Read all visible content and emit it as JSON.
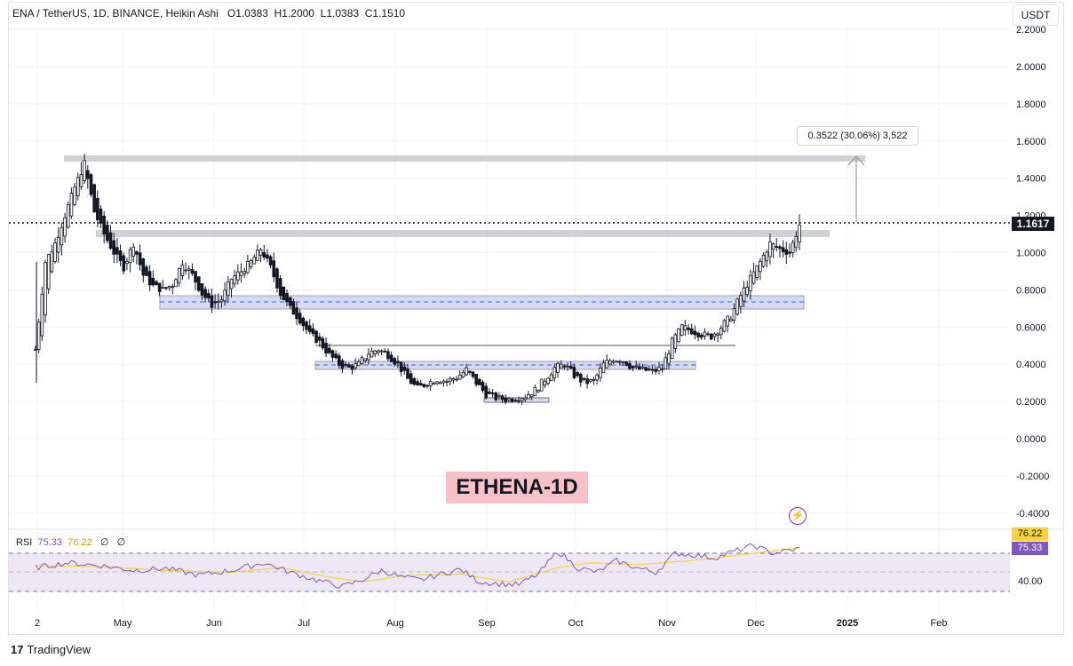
{
  "header": {
    "symbol": "ENA / TetherUS, 1D, BINANCE, Heikin Ashi",
    "open_label": "O",
    "open": "1.0383",
    "high_label": "H",
    "high": "1.2000",
    "low_label": "L",
    "low": "1.0383",
    "close_label": "C",
    "close": "1.1510"
  },
  "currency_button": "USDT",
  "last_price": "1.1617",
  "measure_label": "0.3522 (30.06%) 3,522",
  "annotation_title": "ETHENA-1D",
  "rsi_legend": {
    "name": "RSI",
    "rsi": "75.33",
    "ma": "76.22",
    "extra1": "∅",
    "extra2": "∅"
  },
  "rsi_tags": {
    "ma": "76.22",
    "rsi": "75.33"
  },
  "rsi_axis_label": "40.00",
  "colors": {
    "rsi_line": "#7e57c2",
    "rsi_ma": "#f7d339",
    "rsi_band": "#ede7f6",
    "zone_fill": "#d6daf5",
    "resistance": "#c8c9cc"
  },
  "icons": {
    "alert": "bolt-icon",
    "logo": "tradingview-logo-icon"
  },
  "logo_text": "TradingView",
  "chart_data": {
    "type": "candlestick",
    "y_ticks": [
      "2.2000",
      "2.0000",
      "1.8000",
      "1.6000",
      "1.4000",
      "1.2000",
      "1.0000",
      "0.8000",
      "0.6000",
      "0.4000",
      "0.2000",
      "0.0000",
      "-0.2000",
      "-0.4000"
    ],
    "x_ticks": [
      "2",
      "May",
      "Jun",
      "Jul",
      "Aug",
      "Sep",
      "Oct",
      "Nov",
      "Dec",
      "2025",
      "Feb"
    ],
    "ylim": [
      -0.45,
      2.22
    ],
    "close_path": [
      [
        0,
        0.48
      ],
      [
        3,
        0.95
      ],
      [
        6,
        1.05
      ],
      [
        9,
        1.2
      ],
      [
        12,
        1.35
      ],
      [
        15,
        1.48
      ],
      [
        18,
        1.22
      ],
      [
        21,
        1.1
      ],
      [
        24,
        1.0
      ],
      [
        27,
        0.92
      ],
      [
        30,
        1.05
      ],
      [
        33,
        0.88
      ],
      [
        36,
        0.82
      ],
      [
        39,
        0.8
      ],
      [
        42,
        0.83
      ],
      [
        45,
        0.95
      ],
      [
        48,
        0.88
      ],
      [
        51,
        0.78
      ],
      [
        54,
        0.72
      ],
      [
        57,
        0.75
      ],
      [
        60,
        0.86
      ],
      [
        63,
        0.9
      ],
      [
        66,
        0.95
      ],
      [
        69,
        1.02
      ],
      [
        72,
        0.92
      ],
      [
        75,
        0.78
      ],
      [
        78,
        0.7
      ],
      [
        81,
        0.64
      ],
      [
        84,
        0.56
      ],
      [
        87,
        0.52
      ],
      [
        90,
        0.45
      ],
      [
        93,
        0.4
      ],
      [
        96,
        0.38
      ],
      [
        99,
        0.4
      ],
      [
        102,
        0.46
      ],
      [
        105,
        0.48
      ],
      [
        108,
        0.45
      ],
      [
        111,
        0.4
      ],
      [
        114,
        0.32
      ],
      [
        117,
        0.27
      ],
      [
        120,
        0.3
      ],
      [
        123,
        0.32
      ],
      [
        126,
        0.31
      ],
      [
        129,
        0.33
      ],
      [
        132,
        0.37
      ],
      [
        135,
        0.3
      ],
      [
        138,
        0.24
      ],
      [
        141,
        0.22
      ],
      [
        144,
        0.21
      ],
      [
        147,
        0.22
      ],
      [
        150,
        0.23
      ],
      [
        153,
        0.26
      ],
      [
        156,
        0.32
      ],
      [
        159,
        0.38
      ],
      [
        162,
        0.4
      ],
      [
        165,
        0.34
      ],
      [
        168,
        0.3
      ],
      [
        171,
        0.31
      ],
      [
        174,
        0.4
      ],
      [
        177,
        0.43
      ],
      [
        180,
        0.42
      ],
      [
        183,
        0.38
      ],
      [
        186,
        0.37
      ],
      [
        189,
        0.36
      ],
      [
        192,
        0.38
      ],
      [
        195,
        0.52
      ],
      [
        198,
        0.6
      ],
      [
        201,
        0.58
      ],
      [
        204,
        0.56
      ],
      [
        207,
        0.55
      ],
      [
        210,
        0.6
      ],
      [
        213,
        0.66
      ],
      [
        216,
        0.77
      ],
      [
        219,
        0.86
      ],
      [
        222,
        0.95
      ],
      [
        225,
        1.05
      ],
      [
        228,
        1.02
      ],
      [
        231,
        1.0
      ],
      [
        234,
        1.15
      ]
    ],
    "rsi_path": [
      [
        0,
        55
      ],
      [
        10,
        60
      ],
      [
        20,
        57
      ],
      [
        30,
        52
      ],
      [
        40,
        54
      ],
      [
        50,
        47
      ],
      [
        60,
        52
      ],
      [
        70,
        60
      ],
      [
        78,
        50
      ],
      [
        86,
        42
      ],
      [
        94,
        35
      ],
      [
        100,
        42
      ],
      [
        106,
        52
      ],
      [
        112,
        45
      ],
      [
        118,
        42
      ],
      [
        124,
        48
      ],
      [
        130,
        53
      ],
      [
        136,
        40
      ],
      [
        142,
        38
      ],
      [
        148,
        37
      ],
      [
        154,
        48
      ],
      [
        160,
        72
      ],
      [
        166,
        55
      ],
      [
        172,
        50
      ],
      [
        178,
        62
      ],
      [
        184,
        55
      ],
      [
        190,
        50
      ],
      [
        196,
        70
      ],
      [
        202,
        68
      ],
      [
        208,
        65
      ],
      [
        214,
        72
      ],
      [
        220,
        78
      ],
      [
        226,
        70
      ],
      [
        234,
        75
      ]
    ],
    "rsi_ma_path": [
      [
        0,
        57
      ],
      [
        20,
        56
      ],
      [
        40,
        52
      ],
      [
        60,
        50
      ],
      [
        75,
        55
      ],
      [
        90,
        45
      ],
      [
        100,
        40
      ],
      [
        115,
        47
      ],
      [
        130,
        48
      ],
      [
        145,
        40
      ],
      [
        160,
        55
      ],
      [
        170,
        60
      ],
      [
        185,
        58
      ],
      [
        200,
        62
      ],
      [
        215,
        68
      ],
      [
        230,
        74
      ],
      [
        234,
        76
      ]
    ],
    "horizontal_levels": [
      1.52,
      1.1,
      0.76,
      0.7,
      0.5,
      0.42,
      0.38,
      0.21
    ],
    "last_price_line": 1.1617,
    "measure_from": 1.16,
    "measure_to": 1.52
  }
}
